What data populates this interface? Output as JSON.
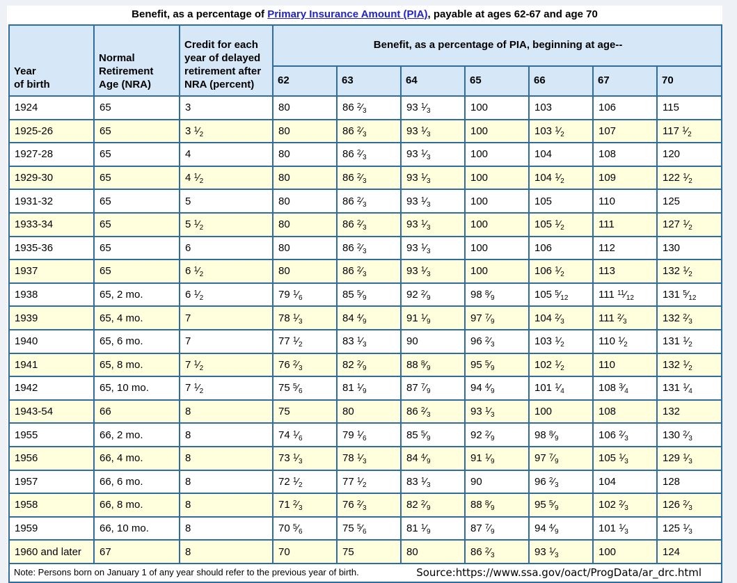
{
  "colors": {
    "page_bg": "#eef1f5",
    "header_bg": "#d6e8f8",
    "row_alt_bg": "#ffffdd",
    "border_outer": "#1f4e78",
    "border_inner": "#2f6d9e",
    "link": "#2222cc"
  },
  "title": {
    "prefix": "Benefit, as a percentage of ",
    "link": "Primary Insurance Amount (PIA)",
    "suffix": ", payable at ages 62-67 and age 70"
  },
  "table": {
    "headers": {
      "year": "Year\nof birth",
      "nra": "Normal\nRetirement\nAge (NRA)",
      "credit": "Credit for each\nyear of delayed\nretirement after\nNRA (percent)",
      "group": "Benefit, as a percentage of PIA, beginning at age--",
      "ages": [
        "62",
        "63",
        "64",
        "65",
        "66",
        "67",
        "70"
      ]
    },
    "rows": [
      {
        "year": "1924",
        "nra": "65",
        "credit": "3",
        "values": [
          "80",
          "86 2/3",
          "93 1/3",
          "100",
          "103",
          "106",
          "115"
        ]
      },
      {
        "year": "1925-26",
        "nra": "65",
        "credit": "3 1/2",
        "values": [
          "80",
          "86 2/3",
          "93 1/3",
          "100",
          "103 1/2",
          "107",
          "117 1/2"
        ]
      },
      {
        "year": "1927-28",
        "nra": "65",
        "credit": "4",
        "values": [
          "80",
          "86 2/3",
          "93 1/3",
          "100",
          "104",
          "108",
          "120"
        ]
      },
      {
        "year": "1929-30",
        "nra": "65",
        "credit": "4 1/2",
        "values": [
          "80",
          "86 2/3",
          "93 1/3",
          "100",
          "104 1/2",
          "109",
          "122 1/2"
        ]
      },
      {
        "year": "1931-32",
        "nra": "65",
        "credit": "5",
        "values": [
          "80",
          "86 2/3",
          "93 1/3",
          "100",
          "105",
          "110",
          "125"
        ]
      },
      {
        "year": "1933-34",
        "nra": "65",
        "credit": "5 1/2",
        "values": [
          "80",
          "86 2/3",
          "93 1/3",
          "100",
          "105 1/2",
          "111",
          "127 1/2"
        ]
      },
      {
        "year": "1935-36",
        "nra": "65",
        "credit": "6",
        "values": [
          "80",
          "86 2/3",
          "93 1/3",
          "100",
          "106",
          "112",
          "130"
        ]
      },
      {
        "year": "1937",
        "nra": "65",
        "credit": "6 1/2",
        "values": [
          "80",
          "86 2/3",
          "93 1/3",
          "100",
          "106 1/2",
          "113",
          "132 1/2"
        ]
      },
      {
        "year": "1938",
        "nra": "65, 2 mo.",
        "credit": "6 1/2",
        "values": [
          "79 1/6",
          "85 5/9",
          "92 2/9",
          "98 8/9",
          "105 5/12",
          "111 11/12",
          "131 5/12"
        ]
      },
      {
        "year": "1939",
        "nra": "65, 4 mo.",
        "credit": "7",
        "values": [
          "78 1/3",
          "84 4/9",
          "91 1/9",
          "97 7/9",
          "104 2/3",
          "111 2/3",
          "132 2/3"
        ]
      },
      {
        "year": "1940",
        "nra": "65, 6 mo.",
        "credit": "7",
        "values": [
          "77 1/2",
          "83 1/3",
          "90",
          "96 2/3",
          "103 1/2",
          "110 1/2",
          "131 1/2"
        ]
      },
      {
        "year": "1941",
        "nra": "65, 8 mo.",
        "credit": "7 1/2",
        "values": [
          "76 2/3",
          "82 2/9",
          "88 8/9",
          "95 5/9",
          "102 1/2",
          "110",
          "132 1/2"
        ]
      },
      {
        "year": "1942",
        "nra": "65, 10 mo.",
        "credit": "7 1/2",
        "values": [
          "75 5/6",
          "81 1/9",
          "87 7/9",
          "94 4/9",
          "101 1/4",
          "108 3/4",
          "131 1/4"
        ]
      },
      {
        "year": "1943-54",
        "nra": "66",
        "credit": "8",
        "values": [
          "75",
          "80",
          "86 2/3",
          "93 1/3",
          "100",
          "108",
          "132"
        ]
      },
      {
        "year": "1955",
        "nra": "66, 2 mo.",
        "credit": "8",
        "values": [
          "74 1/6",
          "79 1/6",
          "85 5/9",
          "92 2/9",
          "98 8/9",
          "106 2/3",
          "130 2/3"
        ]
      },
      {
        "year": "1956",
        "nra": "66, 4 mo.",
        "credit": "8",
        "values": [
          "73 1/3",
          "78 1/3",
          "84 4/9",
          "91 1/9",
          "97 7/9",
          "105 1/3",
          "129 1/3"
        ]
      },
      {
        "year": "1957",
        "nra": "66, 6 mo.",
        "credit": "8",
        "values": [
          "72 1/2",
          "77 1/2",
          "83 1/3",
          "90",
          "96 2/3",
          "104",
          "128"
        ]
      },
      {
        "year": "1958",
        "nra": "66, 8 mo.",
        "credit": "8",
        "values": [
          "71 2/3",
          "76 2/3",
          "82 2/9",
          "88 8/9",
          "95 5/9",
          "102 2/3",
          "126 2/3"
        ]
      },
      {
        "year": "1959",
        "nra": "66, 10 mo.",
        "credit": "8",
        "values": [
          "70 5/6",
          "75 5/6",
          "81 1/9",
          "87 7/9",
          "94 4/9",
          "101 1/3",
          "125 1/3"
        ]
      },
      {
        "year": "1960 and later",
        "nra": "67",
        "credit": "8",
        "values": [
          "70",
          "75",
          "80",
          "86 2/3",
          "93 1/3",
          "100",
          "124"
        ]
      }
    ],
    "note": "Note: Persons born on January 1 of any year should refer to the previous year of birth.",
    "source": "Source:https://www.ssa.gov/oact/ProgData/ar_drc.html"
  }
}
